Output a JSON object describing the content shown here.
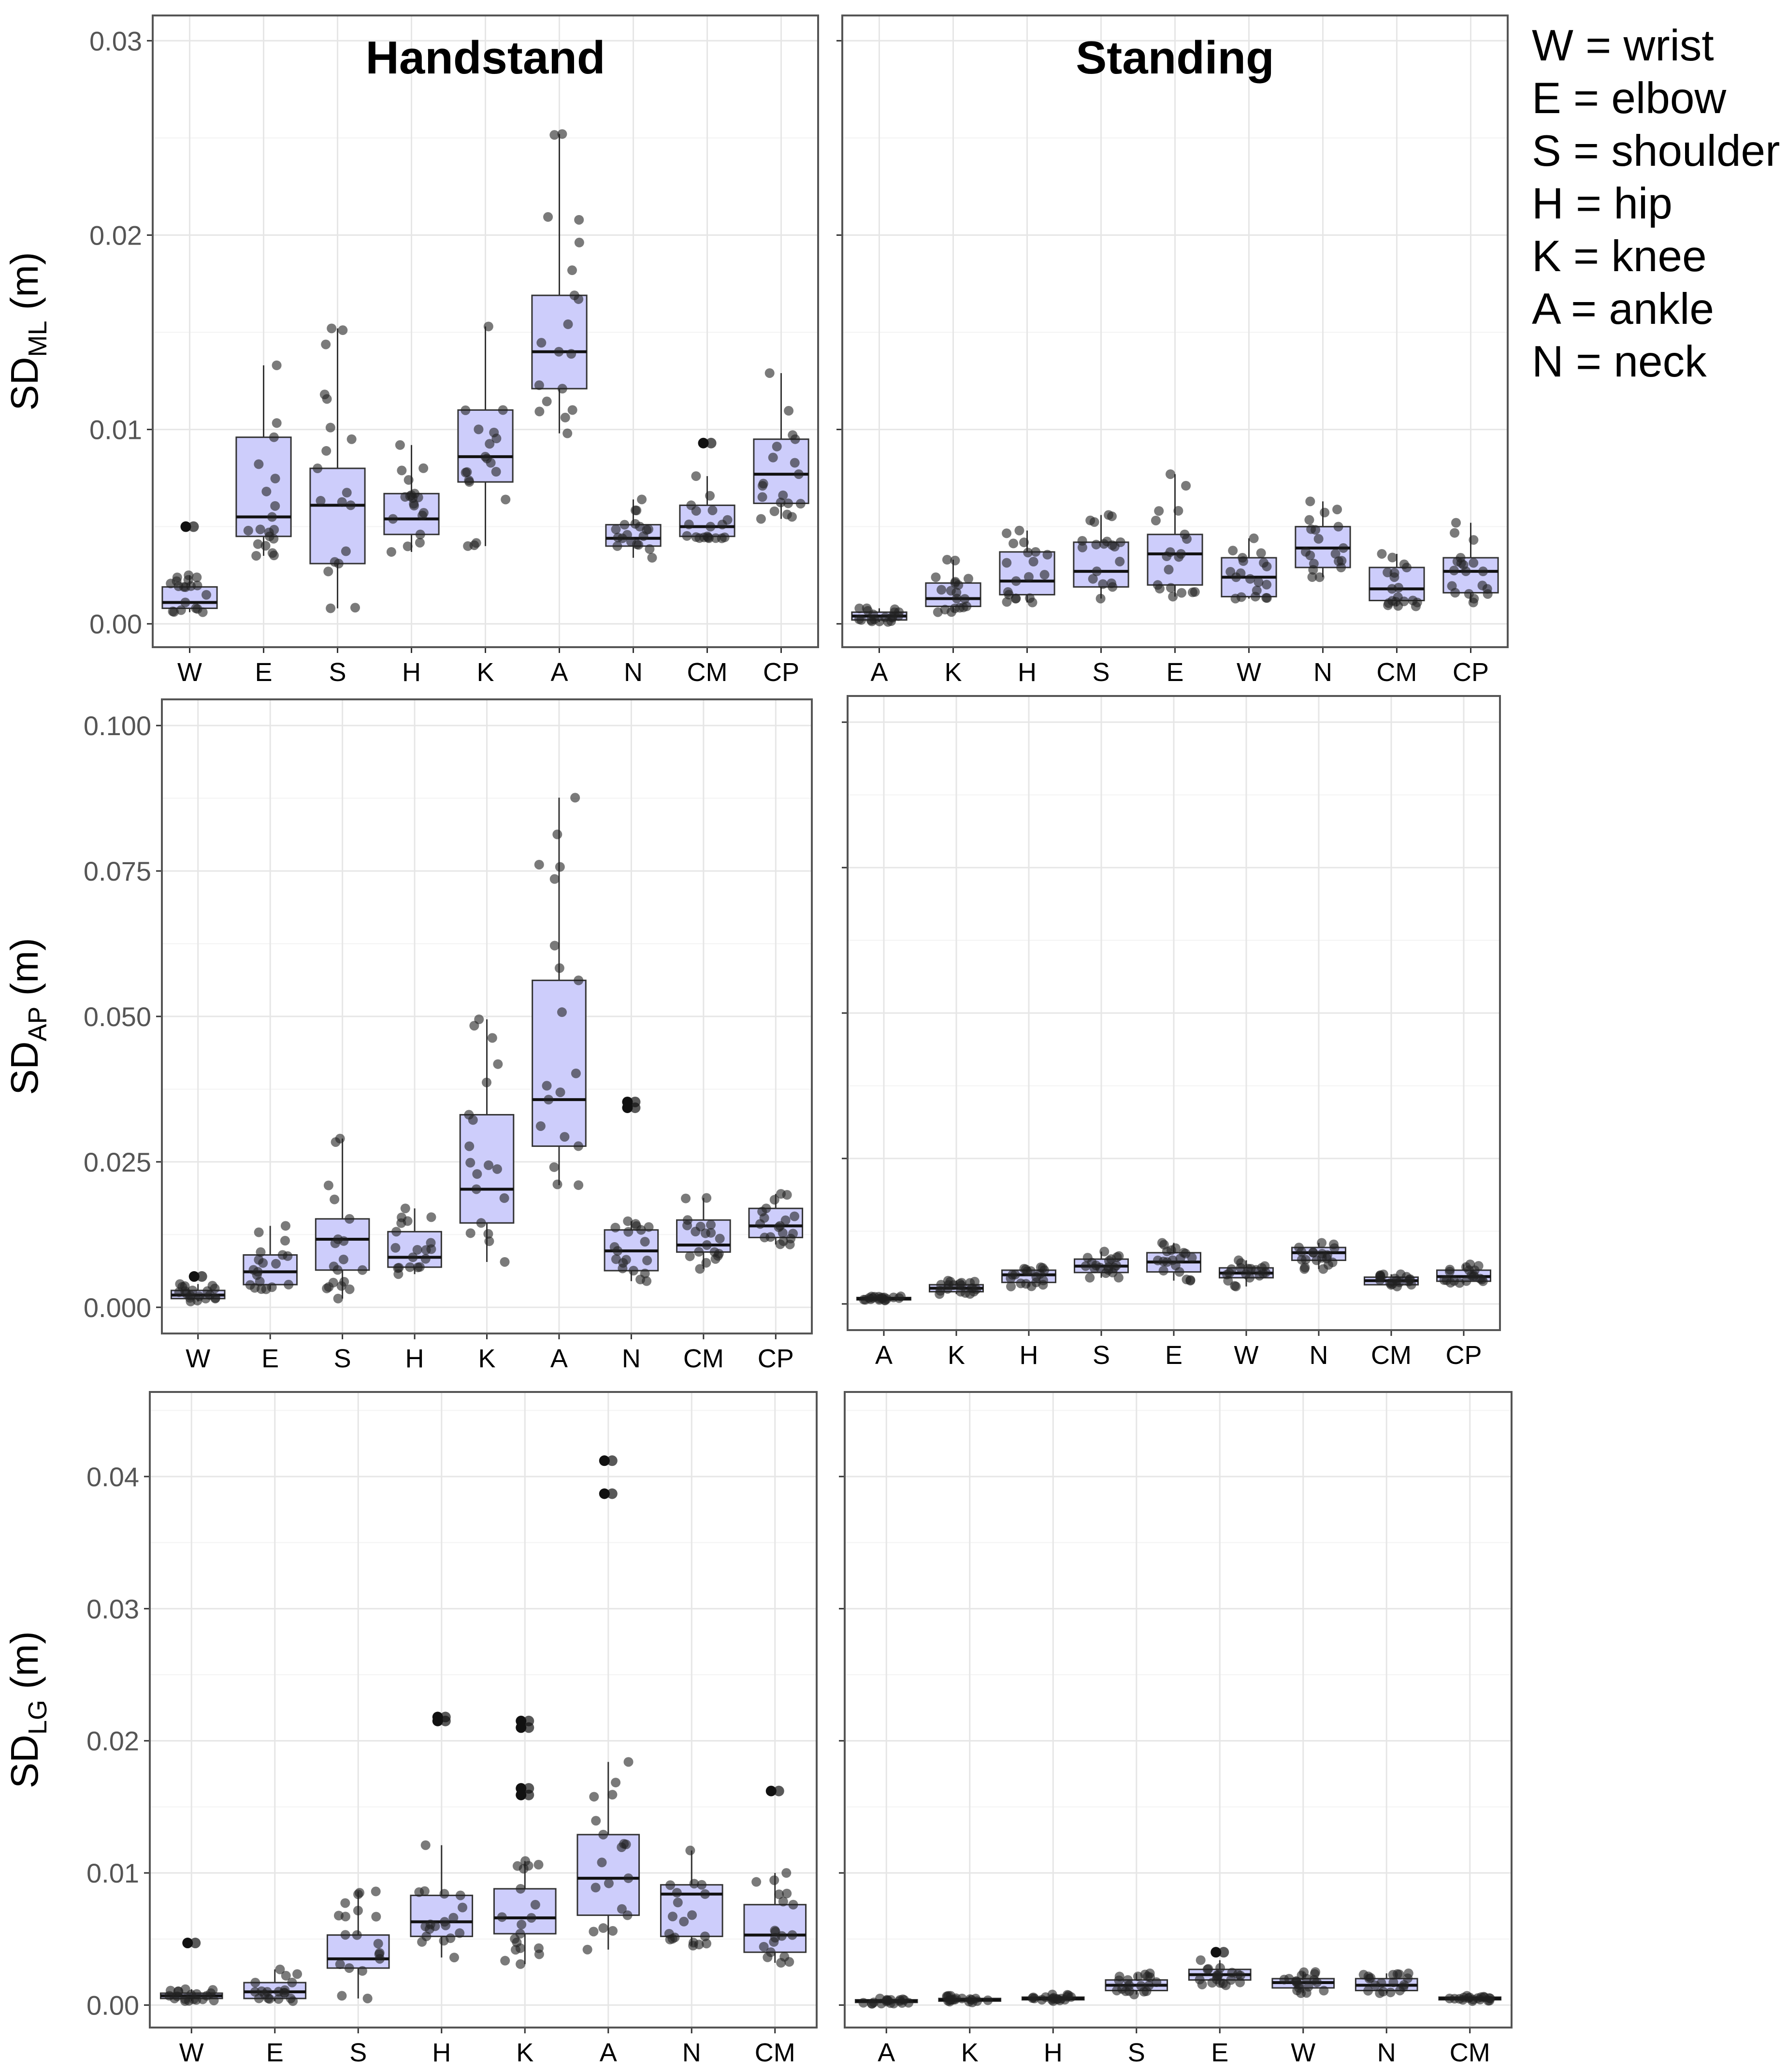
{
  "colors": {
    "box_fill": "#cdcdfb",
    "box_stroke": "#333333",
    "panel_border": "#555555",
    "grid_major": "#e6e6e6",
    "grid_minor": "#f3f3f3",
    "point": "#222222",
    "tick_label": "#555555"
  },
  "legend": [
    "W = wrist",
    "E = elbow",
    "S = shoulder",
    "H = hip",
    "K = knee",
    "A = ankle",
    "N = neck"
  ],
  "chart_data": [
    {
      "type": "box",
      "id": "ml-handstand",
      "title": "Handstand",
      "ylabel": {
        "main": "SD",
        "sub": "ML",
        "unit": " (m)"
      },
      "ylim": [
        -0.0012,
        0.0313
      ],
      "yticks": [
        0.0,
        0.01,
        0.02,
        0.03
      ],
      "ytick_labels": [
        "0.00",
        "0.01",
        "0.02",
        "0.03"
      ],
      "categories": [
        "W",
        "E",
        "S",
        "H",
        "K",
        "A",
        "N",
        "CM",
        "CP"
      ],
      "boxes": [
        {
          "q1": 0.0008,
          "median": 0.0011,
          "q3": 0.0019,
          "lo": 0.0006,
          "hi": 0.0025,
          "outliers": [
            0.005
          ]
        },
        {
          "q1": 0.0045,
          "median": 0.0055,
          "q3": 0.0096,
          "lo": 0.0035,
          "hi": 0.0133,
          "outliers": []
        },
        {
          "q1": 0.0031,
          "median": 0.0061,
          "q3": 0.008,
          "lo": 0.0008,
          "hi": 0.0152,
          "outliers": []
        },
        {
          "q1": 0.0046,
          "median": 0.0054,
          "q3": 0.0067,
          "lo": 0.0037,
          "hi": 0.0092,
          "outliers": []
        },
        {
          "q1": 0.0073,
          "median": 0.0086,
          "q3": 0.011,
          "lo": 0.004,
          "hi": 0.0153,
          "outliers": []
        },
        {
          "q1": 0.0121,
          "median": 0.014,
          "q3": 0.0169,
          "lo": 0.0098,
          "hi": 0.0252,
          "outliers": []
        },
        {
          "q1": 0.004,
          "median": 0.0044,
          "q3": 0.0051,
          "lo": 0.0034,
          "hi": 0.0064,
          "outliers": []
        },
        {
          "q1": 0.0045,
          "median": 0.005,
          "q3": 0.0061,
          "lo": 0.0044,
          "hi": 0.0076,
          "outliers": [
            0.0093
          ]
        },
        {
          "q1": 0.0062,
          "median": 0.0077,
          "q3": 0.0095,
          "lo": 0.0054,
          "hi": 0.0129,
          "outliers": []
        }
      ]
    },
    {
      "type": "box",
      "id": "ml-standing",
      "title": "Standing",
      "ylim": [
        -0.0012,
        0.0313
      ],
      "yticks": [
        0.0,
        0.01,
        0.02,
        0.03
      ],
      "categories": [
        "A",
        "K",
        "H",
        "S",
        "E",
        "W",
        "N",
        "CM",
        "CP"
      ],
      "boxes": [
        {
          "q1": 0.0002,
          "median": 0.0004,
          "q3": 0.0006,
          "lo": 0.0001,
          "hi": 0.0008,
          "outliers": []
        },
        {
          "q1": 0.0009,
          "median": 0.0013,
          "q3": 0.0021,
          "lo": 0.0006,
          "hi": 0.0033,
          "outliers": []
        },
        {
          "q1": 0.0015,
          "median": 0.0022,
          "q3": 0.0037,
          "lo": 0.0011,
          "hi": 0.0048,
          "outliers": []
        },
        {
          "q1": 0.0019,
          "median": 0.0027,
          "q3": 0.0042,
          "lo": 0.0013,
          "hi": 0.0056,
          "outliers": []
        },
        {
          "q1": 0.002,
          "median": 0.0036,
          "q3": 0.0046,
          "lo": 0.0014,
          "hi": 0.0077,
          "outliers": []
        },
        {
          "q1": 0.0014,
          "median": 0.0024,
          "q3": 0.0034,
          "lo": 0.0013,
          "hi": 0.0044,
          "outliers": []
        },
        {
          "q1": 0.0029,
          "median": 0.0039,
          "q3": 0.005,
          "lo": 0.0024,
          "hi": 0.0063,
          "outliers": []
        },
        {
          "q1": 0.0012,
          "median": 0.0018,
          "q3": 0.0029,
          "lo": 0.0009,
          "hi": 0.0036,
          "outliers": []
        },
        {
          "q1": 0.0016,
          "median": 0.0027,
          "q3": 0.0034,
          "lo": 0.0011,
          "hi": 0.0052,
          "outliers": []
        }
      ]
    },
    {
      "type": "box",
      "id": "ap-handstand",
      "title": "",
      "ylabel": {
        "main": "SD",
        "sub": "AP",
        "unit": " (m)"
      },
      "ylim": [
        -0.0045,
        0.1045
      ],
      "yticks": [
        0.0,
        0.025,
        0.05,
        0.075,
        0.1
      ],
      "ytick_labels": [
        "0.000",
        "0.025",
        "0.050",
        "0.075",
        "0.100"
      ],
      "categories": [
        "W",
        "E",
        "S",
        "H",
        "K",
        "A",
        "N",
        "CM",
        "CP"
      ],
      "boxes": [
        {
          "q1": 0.0015,
          "median": 0.0021,
          "q3": 0.0029,
          "lo": 0.001,
          "hi": 0.004,
          "outliers": [
            0.0053
          ]
        },
        {
          "q1": 0.0039,
          "median": 0.0061,
          "q3": 0.009,
          "lo": 0.0031,
          "hi": 0.014,
          "outliers": []
        },
        {
          "q1": 0.0064,
          "median": 0.0117,
          "q3": 0.0152,
          "lo": 0.0015,
          "hi": 0.029,
          "outliers": []
        },
        {
          "q1": 0.0069,
          "median": 0.0086,
          "q3": 0.013,
          "lo": 0.0057,
          "hi": 0.017,
          "outliers": []
        },
        {
          "q1": 0.0145,
          "median": 0.0203,
          "q3": 0.0331,
          "lo": 0.0078,
          "hi": 0.0495,
          "outliers": []
        },
        {
          "q1": 0.0277,
          "median": 0.0357,
          "q3": 0.0562,
          "lo": 0.021,
          "hi": 0.0876,
          "outliers": []
        },
        {
          "q1": 0.0063,
          "median": 0.0097,
          "q3": 0.0133,
          "lo": 0.0045,
          "hi": 0.0148,
          "outliers": [
            0.0343,
            0.0353
          ]
        },
        {
          "q1": 0.0095,
          "median": 0.0107,
          "q3": 0.015,
          "lo": 0.0066,
          "hi": 0.0188,
          "outliers": []
        },
        {
          "q1": 0.012,
          "median": 0.014,
          "q3": 0.017,
          "lo": 0.0108,
          "hi": 0.0195,
          "outliers": []
        }
      ]
    },
    {
      "type": "box",
      "id": "ap-standing",
      "title": "",
      "ylim": [
        -0.0045,
        0.1045
      ],
      "yticks": [
        0.0,
        0.025,
        0.05,
        0.075,
        0.1
      ],
      "categories": [
        "A",
        "K",
        "H",
        "S",
        "E",
        "W",
        "N",
        "CM",
        "CP"
      ],
      "boxes": [
        {
          "q1": 0.0007,
          "median": 0.0009,
          "q3": 0.0011,
          "lo": 0.0006,
          "hi": 0.0013,
          "outliers": []
        },
        {
          "q1": 0.0021,
          "median": 0.0027,
          "q3": 0.0033,
          "lo": 0.0017,
          "hi": 0.004,
          "outliers": []
        },
        {
          "q1": 0.0037,
          "median": 0.005,
          "q3": 0.0058,
          "lo": 0.003,
          "hi": 0.0063,
          "outliers": []
        },
        {
          "q1": 0.0054,
          "median": 0.0065,
          "q3": 0.0077,
          "lo": 0.0045,
          "hi": 0.009,
          "outliers": []
        },
        {
          "q1": 0.0055,
          "median": 0.0072,
          "q3": 0.0088,
          "lo": 0.004,
          "hi": 0.0105,
          "outliers": []
        },
        {
          "q1": 0.0045,
          "median": 0.0053,
          "q3": 0.0062,
          "lo": 0.003,
          "hi": 0.0075,
          "outliers": []
        },
        {
          "q1": 0.0075,
          "median": 0.0088,
          "q3": 0.0097,
          "lo": 0.006,
          "hi": 0.0105,
          "outliers": []
        },
        {
          "q1": 0.0033,
          "median": 0.004,
          "q3": 0.0046,
          "lo": 0.003,
          "hi": 0.0051,
          "outliers": []
        },
        {
          "q1": 0.0039,
          "median": 0.0047,
          "q3": 0.0058,
          "lo": 0.0036,
          "hi": 0.0068,
          "outliers": []
        }
      ]
    },
    {
      "type": "box",
      "id": "lg-handstand",
      "title": "",
      "ylabel": {
        "main": "SD",
        "sub": "LG",
        "unit": " (m)"
      },
      "ylim": [
        -0.0017,
        0.0464
      ],
      "yticks": [
        0.0,
        0.01,
        0.02,
        0.03,
        0.04
      ],
      "ytick_labels": [
        "0.00",
        "0.01",
        "0.02",
        "0.03",
        "0.04"
      ],
      "categories": [
        "W",
        "E",
        "S",
        "H",
        "K",
        "A",
        "N",
        "CM"
      ],
      "boxes": [
        {
          "q1": 0.0005,
          "median": 0.0007,
          "q3": 0.0009,
          "lo": 0.0003,
          "hi": 0.0012,
          "outliers": [
            0.0047
          ]
        },
        {
          "q1": 0.0005,
          "median": 0.001,
          "q3": 0.0017,
          "lo": 0.0003,
          "hi": 0.0027,
          "outliers": []
        },
        {
          "q1": 0.0028,
          "median": 0.0035,
          "q3": 0.0053,
          "lo": 0.0005,
          "hi": 0.0086,
          "outliers": []
        },
        {
          "q1": 0.0052,
          "median": 0.0063,
          "q3": 0.0083,
          "lo": 0.0036,
          "hi": 0.0121,
          "outliers": [
            0.0215,
            0.0218
          ]
        },
        {
          "q1": 0.0054,
          "median": 0.0066,
          "q3": 0.0088,
          "lo": 0.0031,
          "hi": 0.0109,
          "outliers": [
            0.0159,
            0.0164,
            0.021,
            0.0215
          ]
        },
        {
          "q1": 0.0068,
          "median": 0.0096,
          "q3": 0.0129,
          "lo": 0.0042,
          "hi": 0.0184,
          "outliers": [
            0.0387,
            0.0412
          ]
        },
        {
          "q1": 0.0052,
          "median": 0.0084,
          "q3": 0.0091,
          "lo": 0.0045,
          "hi": 0.0117,
          "outliers": []
        },
        {
          "q1": 0.004,
          "median": 0.0053,
          "q3": 0.0076,
          "lo": 0.0032,
          "hi": 0.01,
          "outliers": [
            0.0162
          ]
        }
      ]
    },
    {
      "type": "box",
      "id": "lg-standing",
      "title": "",
      "ylim": [
        -0.0017,
        0.0464
      ],
      "yticks": [
        0.0,
        0.01,
        0.02,
        0.03,
        0.04
      ],
      "categories": [
        "A",
        "K",
        "H",
        "S",
        "E",
        "W",
        "N",
        "CM"
      ],
      "boxes": [
        {
          "q1": 0.0002,
          "median": 0.0003,
          "q3": 0.0004,
          "lo": 0.0001,
          "hi": 0.0005,
          "outliers": []
        },
        {
          "q1": 0.0003,
          "median": 0.0004,
          "q3": 0.0005,
          "lo": 0.0002,
          "hi": 0.0007,
          "outliers": []
        },
        {
          "q1": 0.0004,
          "median": 0.0005,
          "q3": 0.0006,
          "lo": 0.0003,
          "hi": 0.0008,
          "outliers": []
        },
        {
          "q1": 0.0011,
          "median": 0.0015,
          "q3": 0.0019,
          "lo": 0.0008,
          "hi": 0.0024,
          "outliers": []
        },
        {
          "q1": 0.0019,
          "median": 0.0023,
          "q3": 0.0027,
          "lo": 0.0015,
          "hi": 0.0034,
          "outliers": [
            0.004
          ]
        },
        {
          "q1": 0.0013,
          "median": 0.0017,
          "q3": 0.002,
          "lo": 0.0009,
          "hi": 0.0025,
          "outliers": []
        },
        {
          "q1": 0.0011,
          "median": 0.0015,
          "q3": 0.002,
          "lo": 0.0009,
          "hi": 0.0024,
          "outliers": []
        },
        {
          "q1": 0.0004,
          "median": 0.0005,
          "q3": 0.0006,
          "lo": 0.0003,
          "hi": 0.0007,
          "outliers": []
        }
      ]
    }
  ]
}
